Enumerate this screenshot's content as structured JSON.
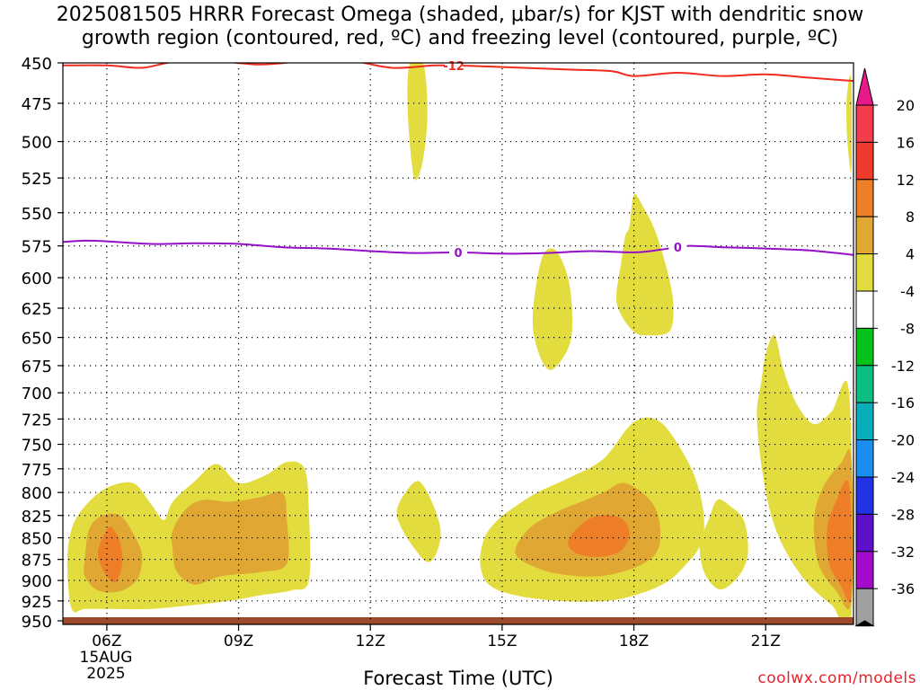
{
  "title_line1": "2025081505 HRRR Forecast Omega (shaded, μbar/s) for KJST with dendritic snow",
  "title_line2": "growth region (contoured, red, ºC) and freezing level (contoured, purple, ºC)",
  "credit": "coolwx.com/models",
  "date_line1": "15AUG",
  "date_line2": "2025",
  "chart_data": {
    "type": "heatmap",
    "title": "2025081505 HRRR Forecast Omega (shaded, μbar/s) for KJST with dendritic snow growth region (contoured, red, ºC) and freezing level (contoured, purple, ºC)",
    "xlabel": "Forecast Time (UTC)",
    "ylabel": "",
    "x_ticks": [
      "06Z",
      "09Z",
      "12Z",
      "15Z",
      "18Z",
      "21Z"
    ],
    "x_tick_hours": [
      6,
      9,
      12,
      15,
      18,
      21
    ],
    "xlim_hours": [
      5,
      23
    ],
    "y_ticks": [
      450,
      475,
      500,
      525,
      550,
      575,
      600,
      625,
      650,
      675,
      700,
      725,
      750,
      775,
      800,
      825,
      850,
      875,
      900,
      925,
      950
    ],
    "ylim_hPa": [
      450,
      950
    ],
    "y_scale": "log-pressure",
    "grid": true,
    "colorbar": {
      "labels": [
        20,
        16,
        12,
        8,
        4,
        -4,
        -8,
        -12,
        -16,
        -20,
        -24,
        -28,
        -32,
        -36
      ],
      "colors": [
        "#f33c4c",
        "#ed3a2c",
        "#ef7e29",
        "#e0a733",
        "#e3dc3f",
        "#ffffff",
        "#03c31b",
        "#0cbe7f",
        "#08aeb9",
        "#1a8ff0",
        "#2233e6",
        "#5e0fc9",
        "#a30ccb",
        "#a0a0a0"
      ],
      "top_arrow_color": "#e8198a",
      "bottom_arrow_color": "#000000"
    },
    "omega_levels": [
      4,
      8,
      12
    ],
    "omega_fill_colors": [
      "#e3dc3f",
      "#e0a733",
      "#ef7e29"
    ],
    "omega_regions": [
      {
        "level": 4,
        "points": [
          [
            5.2,
            935
          ],
          [
            5.1,
            880
          ],
          [
            5.2,
            840
          ],
          [
            5.5,
            815
          ],
          [
            6.0,
            795
          ],
          [
            6.6,
            790
          ],
          [
            7.0,
            812
          ],
          [
            7.3,
            830
          ],
          [
            7.5,
            810
          ],
          [
            8.0,
            788
          ],
          [
            8.5,
            770
          ],
          [
            9.0,
            790
          ],
          [
            9.6,
            782
          ],
          [
            10.1,
            768
          ],
          [
            10.5,
            775
          ],
          [
            10.6,
            820
          ],
          [
            10.6,
            900
          ],
          [
            10.2,
            912
          ],
          [
            9.5,
            918
          ],
          [
            8.8,
            925
          ],
          [
            8.0,
            930
          ],
          [
            7.0,
            935
          ],
          [
            6.0,
            935
          ],
          [
            5.5,
            935
          ]
        ]
      },
      {
        "level": 4,
        "points": [
          [
            12.9,
            450
          ],
          [
            13.2,
            450
          ],
          [
            13.3,
            480
          ],
          [
            13.2,
            512
          ],
          [
            13.0,
            525
          ],
          [
            12.85,
            480
          ]
        ]
      },
      {
        "level": 4,
        "points": [
          [
            12.6,
            820
          ],
          [
            12.8,
            800
          ],
          [
            13.1,
            788
          ],
          [
            13.4,
            810
          ],
          [
            13.6,
            842
          ],
          [
            13.5,
            868
          ],
          [
            13.3,
            878
          ],
          [
            13.0,
            862
          ],
          [
            12.7,
            838
          ]
        ]
      },
      {
        "level": 4,
        "points": [
          [
            15.7,
            630
          ],
          [
            15.9,
            585
          ],
          [
            16.2,
            578
          ],
          [
            16.5,
            600
          ],
          [
            16.6,
            635
          ],
          [
            16.5,
            660
          ],
          [
            16.1,
            679
          ],
          [
            15.8,
            660
          ]
        ]
      },
      {
        "level": 4,
        "points": [
          [
            17.6,
            615
          ],
          [
            17.7,
            590
          ],
          [
            17.8,
            568
          ],
          [
            17.9,
            560
          ],
          [
            18.0,
            537
          ],
          [
            18.2,
            545
          ],
          [
            18.5,
            565
          ],
          [
            18.8,
            600
          ],
          [
            18.9,
            625
          ],
          [
            18.8,
            645
          ],
          [
            18.3,
            648
          ],
          [
            18.0,
            645
          ],
          [
            17.7,
            630
          ]
        ]
      },
      {
        "level": 4,
        "points": [
          [
            14.5,
            880
          ],
          [
            14.6,
            850
          ],
          [
            14.9,
            830
          ],
          [
            15.3,
            815
          ],
          [
            15.8,
            800
          ],
          [
            16.5,
            785
          ],
          [
            17.3,
            765
          ],
          [
            18.0,
            728
          ],
          [
            18.6,
            728
          ],
          [
            19.2,
            765
          ],
          [
            19.5,
            800
          ],
          [
            19.6,
            835
          ],
          [
            19.5,
            860
          ],
          [
            19.2,
            880
          ],
          [
            18.8,
            900
          ],
          [
            18.2,
            915
          ],
          [
            17.4,
            925
          ],
          [
            16.3,
            925
          ],
          [
            15.3,
            918
          ],
          [
            14.7,
            905
          ]
        ]
      },
      {
        "level": 4,
        "points": [
          [
            19.5,
            858
          ],
          [
            19.7,
            830
          ],
          [
            19.9,
            808
          ],
          [
            20.2,
            815
          ],
          [
            20.5,
            830
          ],
          [
            20.6,
            862
          ],
          [
            20.5,
            885
          ],
          [
            20.2,
            905
          ],
          [
            19.9,
            910
          ],
          [
            19.6,
            890
          ]
        ]
      },
      {
        "level": 4,
        "points": [
          [
            20.9,
            690
          ],
          [
            21.0,
            665
          ],
          [
            21.2,
            648
          ],
          [
            21.4,
            678
          ],
          [
            21.7,
            710
          ],
          [
            22.1,
            730
          ],
          [
            22.5,
            718
          ],
          [
            22.9,
            700
          ],
          [
            22.95,
            945
          ],
          [
            22.5,
            930
          ],
          [
            21.9,
            900
          ],
          [
            21.4,
            860
          ],
          [
            21.1,
            820
          ],
          [
            20.9,
            770
          ],
          [
            20.8,
            720
          ]
        ]
      },
      {
        "level": 4,
        "points": [
          [
            22.85,
            470
          ],
          [
            22.95,
            460
          ],
          [
            22.95,
            520
          ],
          [
            22.85,
            495
          ]
        ]
      },
      {
        "level": 8,
        "points": [
          [
            5.5,
            875
          ],
          [
            5.6,
            840
          ],
          [
            5.9,
            825
          ],
          [
            6.3,
            825
          ],
          [
            6.6,
            845
          ],
          [
            6.8,
            870
          ],
          [
            6.7,
            898
          ],
          [
            6.3,
            913
          ],
          [
            5.8,
            912
          ],
          [
            5.5,
            895
          ]
        ]
      },
      {
        "level": 8,
        "points": [
          [
            7.5,
            842
          ],
          [
            7.8,
            818
          ],
          [
            8.2,
            808
          ],
          [
            8.8,
            810
          ],
          [
            9.5,
            805
          ],
          [
            10.0,
            800
          ],
          [
            10.1,
            830
          ],
          [
            10.1,
            880
          ],
          [
            9.5,
            890
          ],
          [
            8.6,
            895
          ],
          [
            8.0,
            905
          ],
          [
            7.6,
            890
          ],
          [
            7.5,
            865
          ]
        ]
      },
      {
        "level": 8,
        "points": [
          [
            15.3,
            868
          ],
          [
            15.6,
            840
          ],
          [
            16.2,
            822
          ],
          [
            16.8,
            810
          ],
          [
            17.3,
            800
          ],
          [
            17.8,
            790
          ],
          [
            18.4,
            810
          ],
          [
            18.6,
            840
          ],
          [
            18.5,
            868
          ],
          [
            18.0,
            885
          ],
          [
            17.2,
            895
          ],
          [
            16.4,
            893
          ],
          [
            15.8,
            885
          ]
        ]
      },
      {
        "level": 8,
        "points": [
          [
            22.1,
            830
          ],
          [
            22.3,
            795
          ],
          [
            22.7,
            770
          ],
          [
            22.95,
            765
          ],
          [
            22.95,
            925
          ],
          [
            22.6,
            912
          ],
          [
            22.2,
            880
          ]
        ]
      },
      {
        "level": 12,
        "points": [
          [
            5.8,
            865
          ],
          [
            5.95,
            845
          ],
          [
            6.1,
            838
          ],
          [
            6.3,
            855
          ],
          [
            6.35,
            880
          ],
          [
            6.2,
            902
          ],
          [
            6.0,
            895
          ],
          [
            5.85,
            880
          ]
        ]
      },
      {
        "level": 12,
        "points": [
          [
            16.5,
            855
          ],
          [
            16.8,
            835
          ],
          [
            17.2,
            825
          ],
          [
            17.7,
            828
          ],
          [
            17.9,
            845
          ],
          [
            17.7,
            865
          ],
          [
            17.2,
            872
          ],
          [
            16.7,
            868
          ]
        ]
      },
      {
        "level": 12,
        "points": [
          [
            22.4,
            840
          ],
          [
            22.6,
            810
          ],
          [
            22.9,
            792
          ],
          [
            22.95,
            920
          ],
          [
            22.7,
            905
          ],
          [
            22.45,
            880
          ]
        ]
      }
    ],
    "dgz_contour": {
      "label": "-12",
      "color": "#f02b20",
      "x": [
        5,
        6,
        6.8,
        7.5,
        8.5,
        9.5,
        10.5,
        11.5,
        12.5,
        13.5,
        14.5,
        15.5,
        16.5,
        17.5,
        18.0,
        19.0,
        20.0,
        21.0,
        22.0,
        23.0
      ],
      "p": [
        451.5,
        451.5,
        453,
        449.5,
        449,
        451,
        449,
        448.5,
        453,
        451.5,
        452,
        453,
        454,
        455,
        458,
        456,
        458,
        457,
        459,
        461
      ]
    },
    "freezing_level": {
      "label": "0",
      "color": "#9411c8",
      "x": [
        5,
        5.5,
        6.0,
        7.0,
        8.0,
        9.0,
        10.0,
        11.0,
        12.0,
        13.0,
        14.0,
        15.0,
        16.0,
        17.0,
        18.0,
        18.6,
        19.2,
        20.0,
        21.0,
        22.0,
        23.0
      ],
      "p": [
        572,
        571,
        571.5,
        573.5,
        573,
        573.5,
        576,
        577,
        579,
        580.5,
        580,
        581,
        580.5,
        579,
        580,
        578,
        575,
        576,
        577,
        578.5,
        582
      ]
    },
    "contour_label_positions": {
      "dgz_x": 13.9,
      "frz_x": [
        14.0,
        19.0
      ]
    },
    "ground_color": "#9c4a2a"
  }
}
